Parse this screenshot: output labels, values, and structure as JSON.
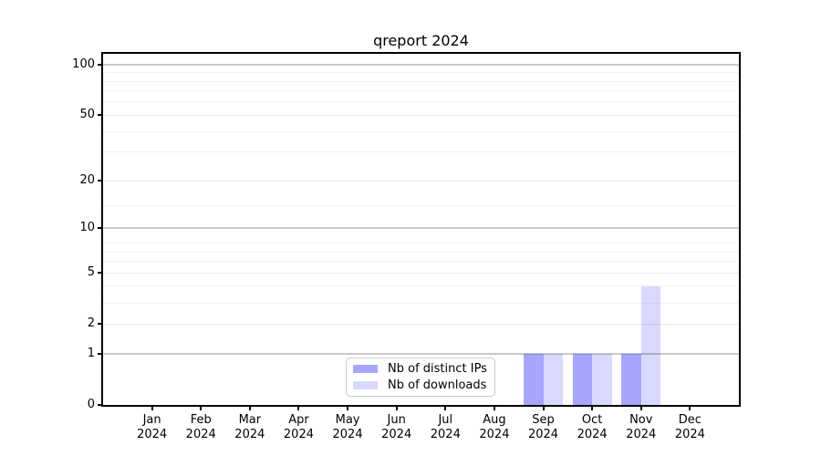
{
  "chart_data": {
    "type": "bar",
    "title": "qreport 2024",
    "x_axis": {
      "categories": [
        "Jan",
        "Feb",
        "Mar",
        "Apr",
        "May",
        "Jun",
        "Jul",
        "Aug",
        "Sep",
        "Oct",
        "Nov",
        "Dec"
      ],
      "year_label": "2024"
    },
    "y_axis": {
      "scale": "log10(value+1)",
      "ticks": [
        0,
        1,
        2,
        5,
        10,
        20,
        50,
        100
      ],
      "minor_gridlines": [
        3,
        4,
        6,
        7,
        8,
        14,
        30,
        40,
        60,
        70,
        80,
        90
      ],
      "ylim": [
        0,
        118
      ]
    },
    "series": [
      {
        "name": "Nb of distinct IPs",
        "color": "#0000ff",
        "alpha": 0.35,
        "swatch_hex": "#a8a8f2",
        "values": [
          0,
          0,
          0,
          0,
          0,
          0,
          0,
          0,
          1,
          1,
          1,
          0
        ]
      },
      {
        "name": "Nb of downloads",
        "color": "#0000ff",
        "alpha": 0.15,
        "swatch_hex": "#dbdbf8",
        "values": [
          0,
          0,
          0,
          0,
          0,
          0,
          0,
          0,
          1,
          1,
          4,
          0
        ]
      }
    ],
    "grid": {
      "major_color": "#c9c9c9",
      "mid_color": "#e7e7e7",
      "minor_color": "#f1f1f1",
      "orientation": "horizontal"
    },
    "legend": {
      "position": "lower-center"
    }
  }
}
